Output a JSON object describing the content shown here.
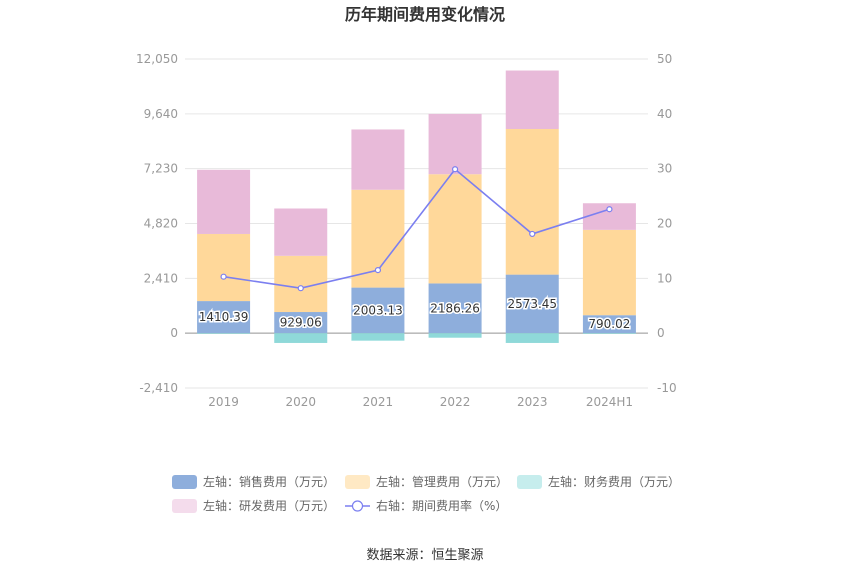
{
  "chart_data": {
    "type": "bar",
    "title": "历年期间费用变化情况",
    "categories": [
      "2019",
      "2020",
      "2021",
      "2022",
      "2023",
      "2024H1"
    ],
    "left_axis": {
      "ticks": [
        "12,050",
        "9,640",
        "7,230",
        "4,820",
        "2,410",
        "0",
        "-2,410"
      ],
      "range": [
        -2410,
        12050
      ]
    },
    "right_axis": {
      "ticks": [
        "50",
        "40",
        "30",
        "20",
        "10",
        "0",
        "-10"
      ],
      "range": [
        -10,
        50
      ]
    },
    "series": [
      {
        "name": "左轴：销售费用（万元）",
        "key": "sales",
        "color": "#8eaedc",
        "axis": "left",
        "stack": true,
        "values": [
          1410.39,
          929.06,
          2003.13,
          2186.26,
          2573.45,
          790.02
        ],
        "labels": [
          "1410.39",
          "929.06",
          "2003.13",
          "2186.26",
          "2573.45",
          "790.02"
        ]
      },
      {
        "name": "左轴：管理费用（万元）",
        "key": "admin",
        "color": "#ffd89a",
        "axis": "left",
        "stack": true,
        "values": [
          2950,
          2470,
          4300,
          4800,
          6400,
          3750
        ]
      },
      {
        "name": "左轴：财务费用（万元）",
        "key": "finance",
        "color": "#8fd9d9",
        "axis": "left",
        "stack": true,
        "values": [
          -30,
          -430,
          -330,
          -200,
          -430,
          -30
        ]
      },
      {
        "name": "左轴：研发费用（万元）",
        "key": "rd",
        "color": "#e8bad9",
        "axis": "left",
        "stack": true,
        "values": [
          2820,
          2080,
          2650,
          2650,
          2570,
          1170
        ]
      },
      {
        "name": "右轴：期间费用率（%）",
        "key": "rate",
        "color": "#7b7ff0",
        "axis": "right",
        "type": "line",
        "values": [
          10.3,
          8.2,
          11.5,
          29.9,
          18.1,
          22.6
        ]
      }
    ],
    "legend_position": "bottom",
    "grid": true
  },
  "source_text": "数据来源：恒生聚源"
}
